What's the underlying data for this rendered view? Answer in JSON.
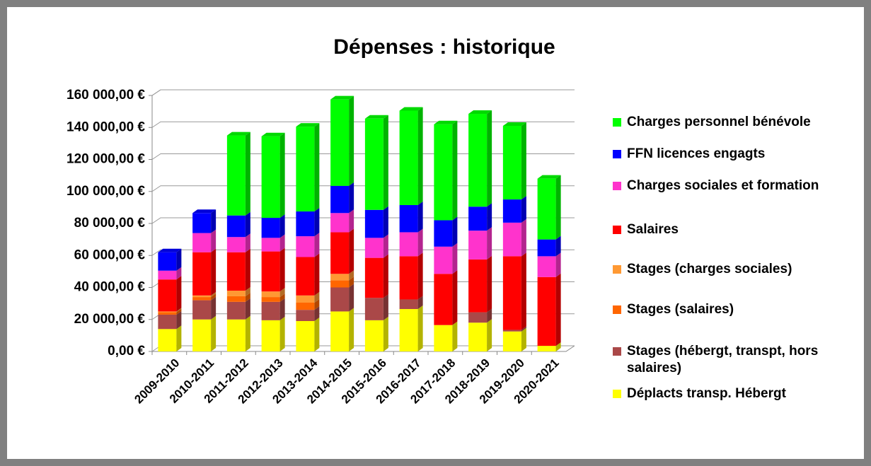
{
  "chart_data": {
    "type": "bar3d_stacked",
    "title": "Dépenses : historique",
    "categories": [
      "2009-2010",
      "2010-2011",
      "2011-2012",
      "2012-2013",
      "2013-2014",
      "2014-2015",
      "2015-2016",
      "2016-2017",
      "2017-2018",
      "2018-2019",
      "2019-2020",
      "2020-2021"
    ],
    "series": [
      {
        "name": "Déplacts transp. Hébergt",
        "color": "#ffff00",
        "values": [
          14000,
          20000,
          20000,
          19500,
          19000,
          25000,
          19500,
          26500,
          16500,
          18000,
          12500,
          3500
        ]
      },
      {
        "name": "Stages (hébergt, transpt, hors salaires)",
        "color": "#aa4848",
        "values": [
          9000,
          12000,
          11000,
          11500,
          7000,
          15000,
          14000,
          6000,
          0,
          6500,
          1000,
          0
        ]
      },
      {
        "name": "Stages (salaires)",
        "color": "#ff6600",
        "values": [
          1500,
          2000,
          3500,
          3000,
          4500,
          4500,
          0,
          0,
          0,
          0,
          0,
          0
        ]
      },
      {
        "name": "Stages (charges sociales)",
        "color": "#ff9933",
        "values": [
          500,
          1000,
          3500,
          3500,
          4500,
          4000,
          0,
          0,
          0,
          0,
          0,
          0
        ]
      },
      {
        "name": "Salaires",
        "color": "#ff0000",
        "values": [
          20000,
          27000,
          24000,
          25000,
          24000,
          26000,
          25000,
          27000,
          32000,
          33000,
          46000,
          43000
        ]
      },
      {
        "name": "Charges sociales et formation",
        "color": "#ff33cc",
        "values": [
          5500,
          12000,
          9500,
          8500,
          13000,
          12000,
          12500,
          15000,
          17000,
          18000,
          21000,
          13000
        ]
      },
      {
        "name": "FFN licences engagts",
        "color": "#0000ff",
        "values": [
          11500,
          12500,
          13500,
          12500,
          15500,
          17000,
          17500,
          17000,
          16500,
          15000,
          14500,
          10500
        ]
      },
      {
        "name": "Charges personnel bénévole",
        "color": "#00ff00",
        "values": [
          0,
          0,
          50000,
          51000,
          53000,
          54000,
          57000,
          59000,
          60000,
          58000,
          46000,
          38000
        ]
      }
    ],
    "ylim": [
      0,
      160000
    ],
    "yticks": [
      {
        "value": 0,
        "label": "0,00 €"
      },
      {
        "value": 20000,
        "label": "20 000,00 €"
      },
      {
        "value": 40000,
        "label": "40 000,00 €"
      },
      {
        "value": 60000,
        "label": "60 000,00 €"
      },
      {
        "value": 80000,
        "label": "80 000,00 €"
      },
      {
        "value": 100000,
        "label": "100 000,00 €"
      },
      {
        "value": 120000,
        "label": "120 000,00 €"
      },
      {
        "value": 140000,
        "label": "140 000,00 €"
      },
      {
        "value": 160000,
        "label": "160 000,00 €"
      }
    ],
    "grid": true,
    "legend": "right"
  }
}
